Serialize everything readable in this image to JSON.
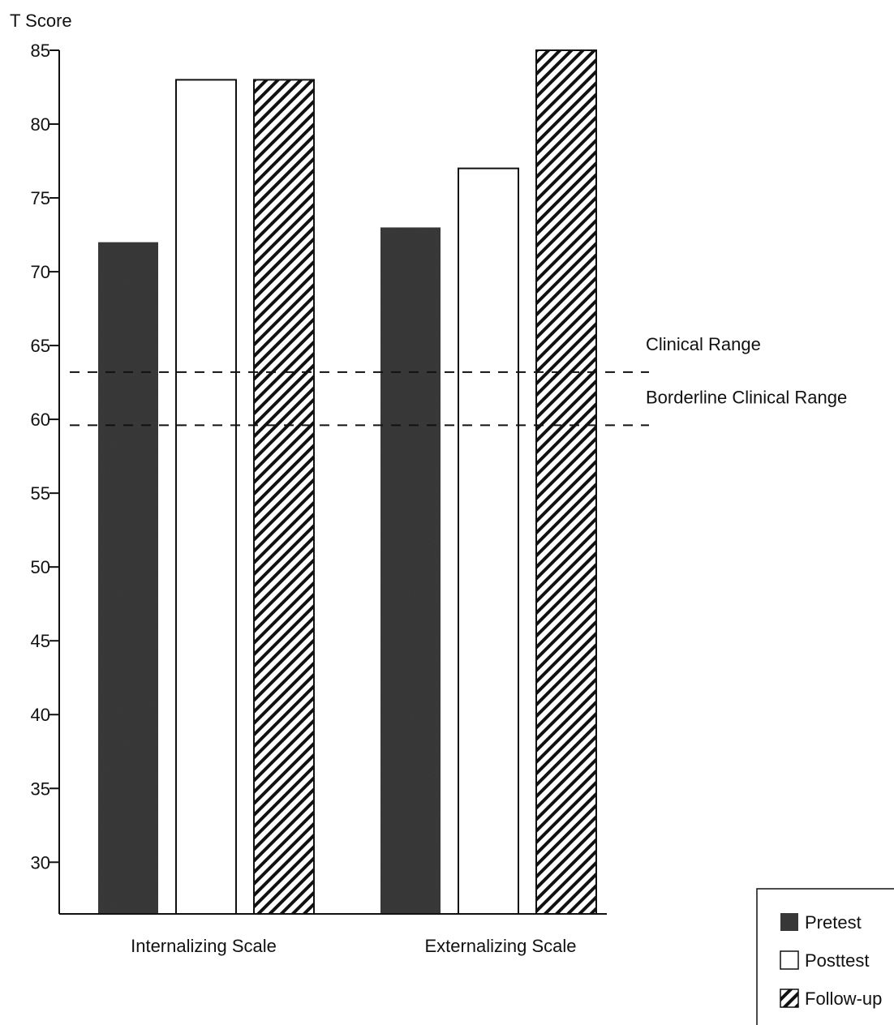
{
  "chart_data": {
    "type": "bar",
    "ylabel": "T Score",
    "xlabel": "",
    "categories": [
      "Internalizing Scale",
      "Externalizing Scale"
    ],
    "series": [
      {
        "name": "Pretest",
        "values": [
          72,
          73
        ],
        "color": "#3a3a3a",
        "fill": "solid"
      },
      {
        "name": "Posttest",
        "values": [
          83,
          77
        ],
        "color": "#ffffff",
        "fill": "empty"
      },
      {
        "name": "Follow-up",
        "values": [
          83,
          85
        ],
        "color": "#ffffff",
        "fill": "hatched"
      }
    ],
    "ylim": [
      26.5,
      85
    ],
    "yticks": [
      30,
      35,
      40,
      45,
      50,
      55,
      60,
      65,
      70,
      75,
      80,
      85
    ],
    "reference_lines": [
      {
        "label": "Clinical Range",
        "value": 63.2,
        "style": "dashed"
      },
      {
        "label": "Borderline Clinical Range",
        "value": 59.6,
        "style": "dashed"
      }
    ],
    "grid": false,
    "legend_position": "bottom-right"
  }
}
